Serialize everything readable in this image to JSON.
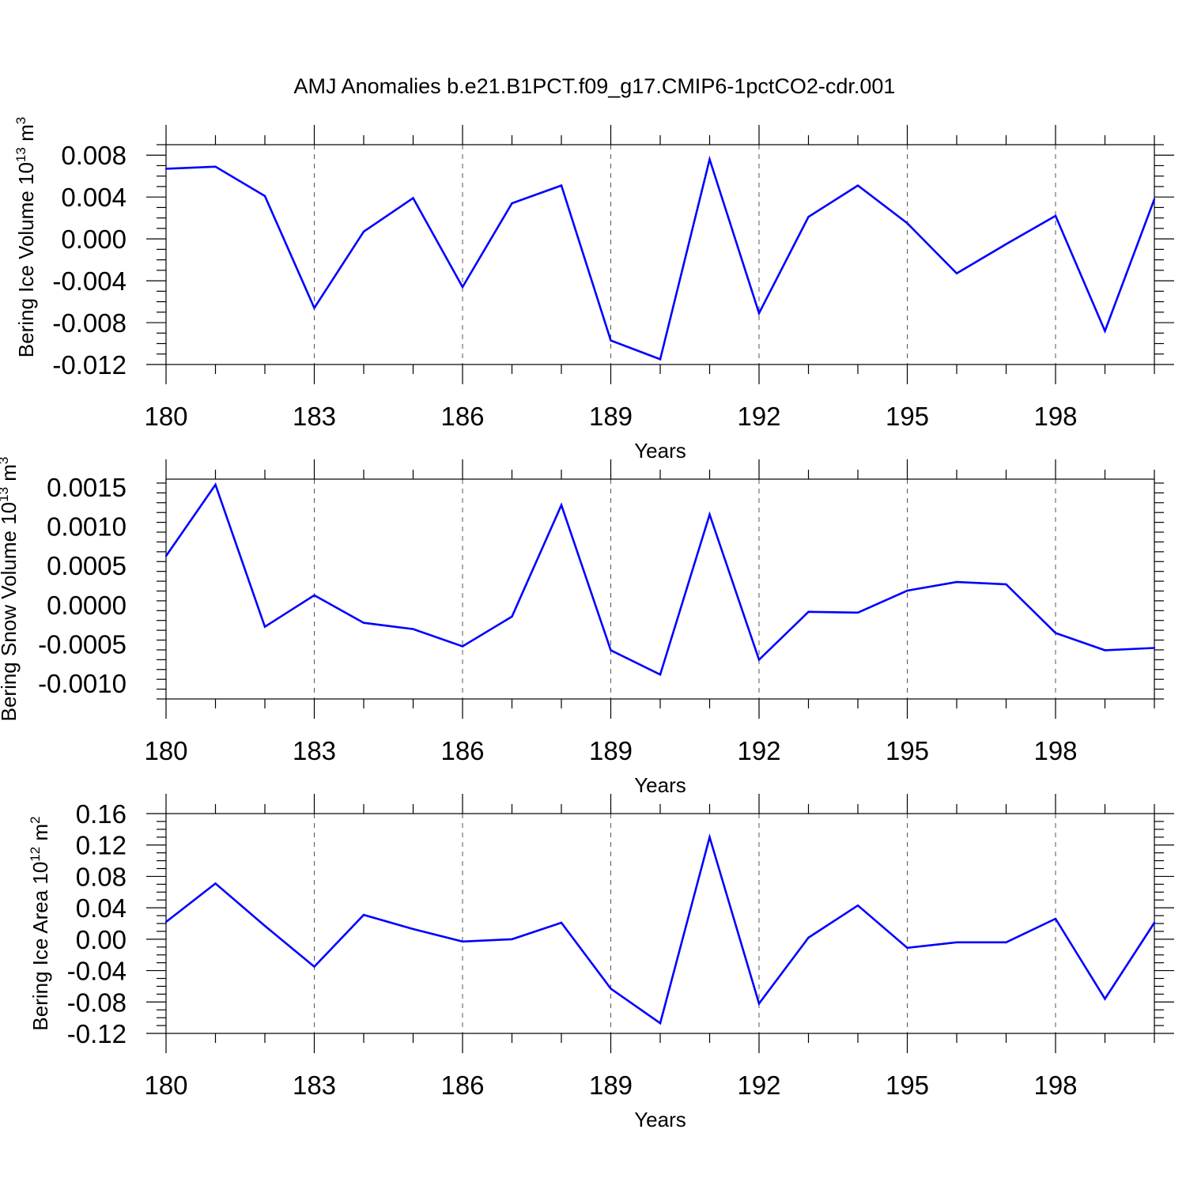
{
  "title": "AMJ Anomalies b.e21.B1PCT.f09_g17.CMIP6-1pctCO2-cdr.001",
  "colors": {
    "line": "#0000ff",
    "axis": "#000000",
    "grid": "#555555"
  },
  "chart_data": [
    {
      "type": "line",
      "xlabel": "Years",
      "ylabel_main": "Bering Ice Volume 10",
      "ylabel_exp": "13",
      "ylabel_unit": " m",
      "ylabel_unit_exp": "3",
      "xlim": [
        180,
        200
      ],
      "xticks": [
        180,
        183,
        186,
        189,
        192,
        195,
        198
      ],
      "xtick_labels": [
        "180",
        "183",
        "186",
        "189",
        "192",
        "195",
        "198"
      ],
      "ylim": [
        -0.012,
        0.009
      ],
      "yticks": [
        -0.012,
        -0.008,
        -0.004,
        0.0,
        0.004,
        0.008
      ],
      "ytick_labels": [
        "-0.012",
        "-0.008",
        "-0.004",
        "0.000",
        "0.004",
        "0.008"
      ],
      "grid": "vertical dashed at major x ticks",
      "x": [
        180,
        181,
        182,
        183,
        184,
        185,
        186,
        187,
        188,
        189,
        190,
        191,
        192,
        193,
        194,
        195,
        196,
        197,
        198,
        199,
        200
      ],
      "values": [
        0.0067,
        0.0069,
        0.0041,
        -0.0066,
        0.0007,
        0.0039,
        -0.0046,
        0.0034,
        0.0051,
        -0.0097,
        -0.0115,
        0.0076,
        -0.0071,
        0.0021,
        0.0051,
        0.0015,
        -0.0033,
        -0.0005,
        0.0022,
        -0.0088,
        0.0038
      ]
    },
    {
      "type": "line",
      "xlabel": "Years",
      "ylabel_main": "Bering Snow Volume 10",
      "ylabel_exp": "13",
      "ylabel_unit": " m",
      "ylabel_unit_exp": "3",
      "xlim": [
        180,
        200
      ],
      "xticks": [
        180,
        183,
        186,
        189,
        192,
        195,
        198
      ],
      "xtick_labels": [
        "180",
        "183",
        "186",
        "189",
        "192",
        "195",
        "198"
      ],
      "ylim": [
        -0.0012,
        0.0016
      ],
      "yticks": [
        -0.001,
        -0.0005,
        0.0,
        0.0005,
        0.001,
        0.0015
      ],
      "ytick_labels": [
        "-0.0010",
        "-0.0005",
        "0.0000",
        "0.0005",
        "0.0010",
        "0.0015"
      ],
      "grid": "vertical dashed at major x ticks",
      "x": [
        180,
        181,
        182,
        183,
        184,
        185,
        186,
        187,
        188,
        189,
        190,
        191,
        192,
        193,
        194,
        195,
        196,
        197,
        198,
        199,
        200
      ],
      "values": [
        0.00062,
        0.00153,
        -0.00028,
        0.00012,
        -0.00023,
        -0.00031,
        -0.00053,
        -0.00015,
        0.00127,
        -0.00058,
        -0.00089,
        0.00115,
        -0.0007,
        -9e-05,
        -0.0001,
        0.00018,
        0.00029,
        0.00026,
        -0.00036,
        -0.00058,
        -0.00055
      ]
    },
    {
      "type": "line",
      "xlabel": "Years",
      "ylabel_main": "Bering Ice Area 10",
      "ylabel_exp": "12",
      "ylabel_unit": " m",
      "ylabel_unit_exp": "2",
      "xlim": [
        180,
        200
      ],
      "xticks": [
        180,
        183,
        186,
        189,
        192,
        195,
        198
      ],
      "xtick_labels": [
        "180",
        "183",
        "186",
        "189",
        "192",
        "195",
        "198"
      ],
      "ylim": [
        -0.12,
        0.16
      ],
      "yticks": [
        -0.12,
        -0.08,
        -0.04,
        0.0,
        0.04,
        0.08,
        0.12,
        0.16
      ],
      "ytick_labels": [
        "-0.12",
        "-0.08",
        "-0.04",
        "0.00",
        "0.04",
        "0.08",
        "0.12",
        "0.16"
      ],
      "grid": "vertical dashed at major x ticks",
      "x": [
        180,
        181,
        182,
        183,
        184,
        185,
        186,
        187,
        188,
        189,
        190,
        191,
        192,
        193,
        194,
        195,
        196,
        197,
        198,
        199,
        200
      ],
      "values": [
        0.022,
        0.071,
        0.017,
        -0.035,
        0.031,
        0.013,
        -0.003,
        0.0,
        0.021,
        -0.063,
        -0.107,
        0.13,
        -0.082,
        0.002,
        0.043,
        -0.011,
        -0.004,
        -0.004,
        0.026,
        -0.076,
        0.021
      ]
    }
  ]
}
